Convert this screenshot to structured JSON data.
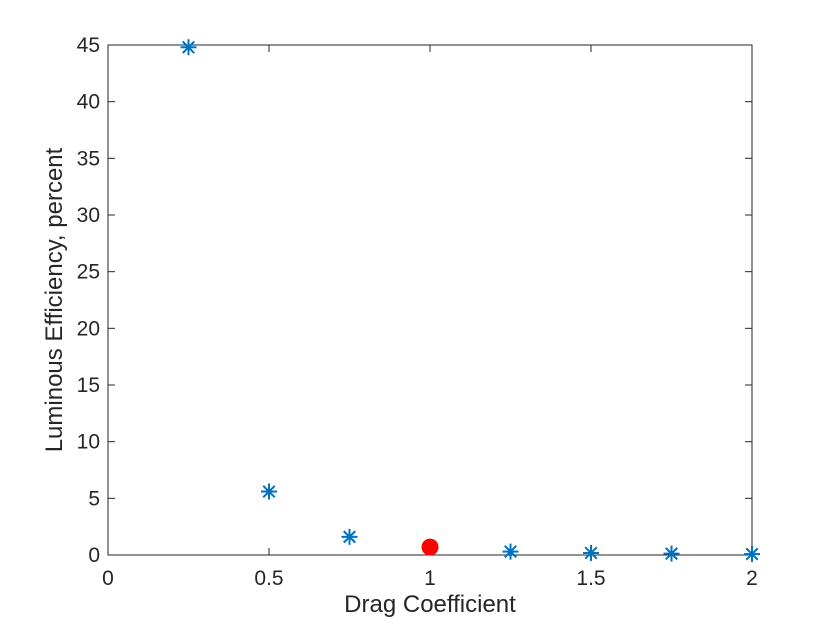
{
  "chart_data": {
    "type": "scatter",
    "title": "",
    "xlabel": "Drag Coefficient",
    "ylabel": "Luminous Efficiency, percent",
    "xlim": [
      0,
      2
    ],
    "ylim": [
      0,
      45
    ],
    "x_ticks": [
      0,
      0.5,
      1,
      1.5,
      2
    ],
    "x_tick_labels": [
      "0",
      "0.5",
      "1",
      "1.5",
      "2"
    ],
    "y_ticks": [
      0,
      5,
      10,
      15,
      20,
      25,
      30,
      35,
      40,
      45
    ],
    "y_tick_labels": [
      "0",
      "5",
      "10",
      "15",
      "20",
      "25",
      "30",
      "35",
      "40",
      "45"
    ],
    "grid": false,
    "legend": "none",
    "series": [
      {
        "marker": "asterisk",
        "color": "#0072BD",
        "x": [
          0.25,
          0.5,
          0.75,
          1.25,
          1.5,
          1.75,
          2.0
        ],
        "y": [
          44.8,
          5.6,
          1.6,
          0.3,
          0.18,
          0.12,
          0.08
        ]
      },
      {
        "marker": "filled-circle",
        "color": "#FF0000",
        "x": [
          1.0
        ],
        "y": [
          0.7
        ]
      }
    ]
  }
}
